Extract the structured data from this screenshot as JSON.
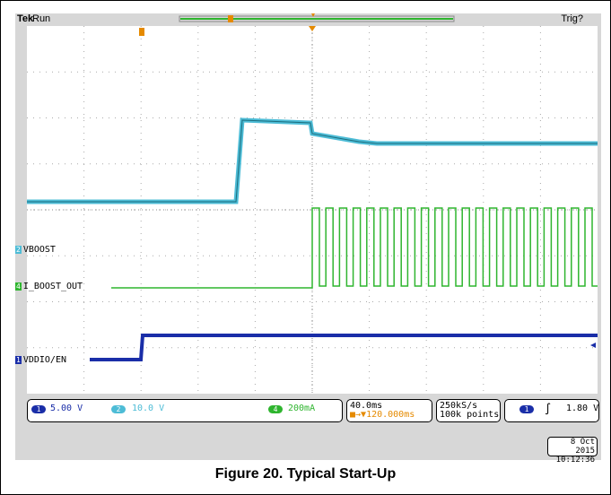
{
  "header": {
    "brand": "Tek",
    "status": "Run",
    "trigger": "Trig?"
  },
  "channels": [
    {
      "number": "2",
      "label": "VBOOST",
      "color": "#4dbcd6"
    },
    {
      "number": "4",
      "label": "I_BOOST_OUT",
      "color": "#2fb52f"
    },
    {
      "number": "1",
      "label": "VDDIO/EN",
      "color": "#1a2ea8"
    }
  ],
  "status_bar": {
    "ch1_scale": "5.00 V",
    "ch2_scale": "10.0 V",
    "ch4_scale": "200mA",
    "time_div": "40.0ms",
    "trigger_pos": "120.000ms",
    "sample_rate": "250kS/s",
    "record_len": "100k points",
    "trig_level": "1.80 V"
  },
  "timestamp": {
    "date": "8 Oct  2015",
    "time": "10:12:36"
  },
  "caption": "Figure 20. Typical Start-Up",
  "colors": {
    "background": "#d7d7d7",
    "screen": "#ffffff",
    "ch1": "#1a2ea8",
    "ch2": "#4dbcd6",
    "ch4": "#2fb52f",
    "marker": "#e58a00"
  },
  "icons": [
    "trigger-marker-icon",
    "ch1-ground-marker-icon",
    "trigger-edge-icon"
  ]
}
